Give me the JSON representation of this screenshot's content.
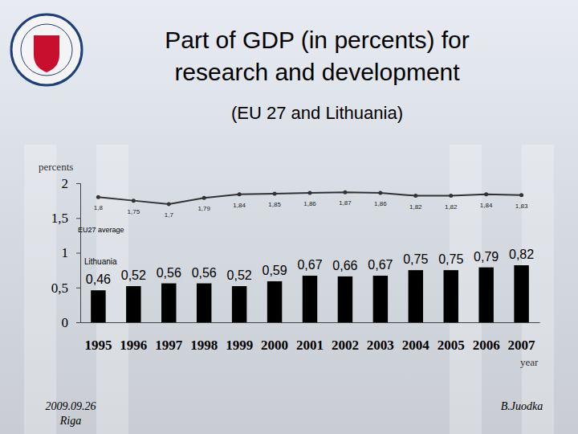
{
  "chart_data": {
    "type": "bar",
    "title": "Part of GDP (in percents) for research and development",
    "subtitle": "(EU 27 and Lithuania)",
    "y_label": "percents",
    "x_label": "year",
    "annotations": [
      "2009.09.26",
      "Riga",
      "B.Juodka"
    ],
    "categories": [
      "1995",
      "1996",
      "1997",
      "1998",
      "1999",
      "2000",
      "2001",
      "2002",
      "2003",
      "2004",
      "2005",
      "2006",
      "2007"
    ],
    "series": [
      {
        "name": "Lithuania",
        "type": "bar",
        "color": "#000000",
        "values": [
          0.46,
          0.52,
          0.56,
          0.56,
          0.52,
          0.59,
          0.67,
          0.66,
          0.67,
          0.75,
          0.75,
          0.79,
          0.82
        ],
        "value_labels": [
          "0,46",
          "0,52",
          "0,56",
          "0,56",
          "0,52",
          "0,59",
          "0,67",
          "0,66",
          "0,67",
          "0,75",
          "0,75",
          "0,79",
          "0,82"
        ]
      },
      {
        "name": "EU27 average",
        "type": "line",
        "color": "#333333",
        "marker": "circle",
        "line_style": "solid",
        "values": [
          1.8,
          1.75,
          1.7,
          1.79,
          1.84,
          1.85,
          1.86,
          1.87,
          1.86,
          1.82,
          1.82,
          1.84,
          1.83
        ],
        "value_labels": [
          "1,8",
          "1,75",
          "1,7",
          "1,79",
          "1,84",
          "1,85",
          "1,86",
          "1,87",
          "1,86",
          "1,82",
          "1,82",
          "1,84",
          "1,83"
        ]
      }
    ],
    "ylim": [
      0,
      2
    ],
    "yticks": [
      0,
      {
        "value": 0.5,
        "label": "0,5"
      },
      1,
      {
        "value": 1.5,
        "label": "1,5"
      },
      2
    ],
    "data_labels": true,
    "grid": false
  }
}
